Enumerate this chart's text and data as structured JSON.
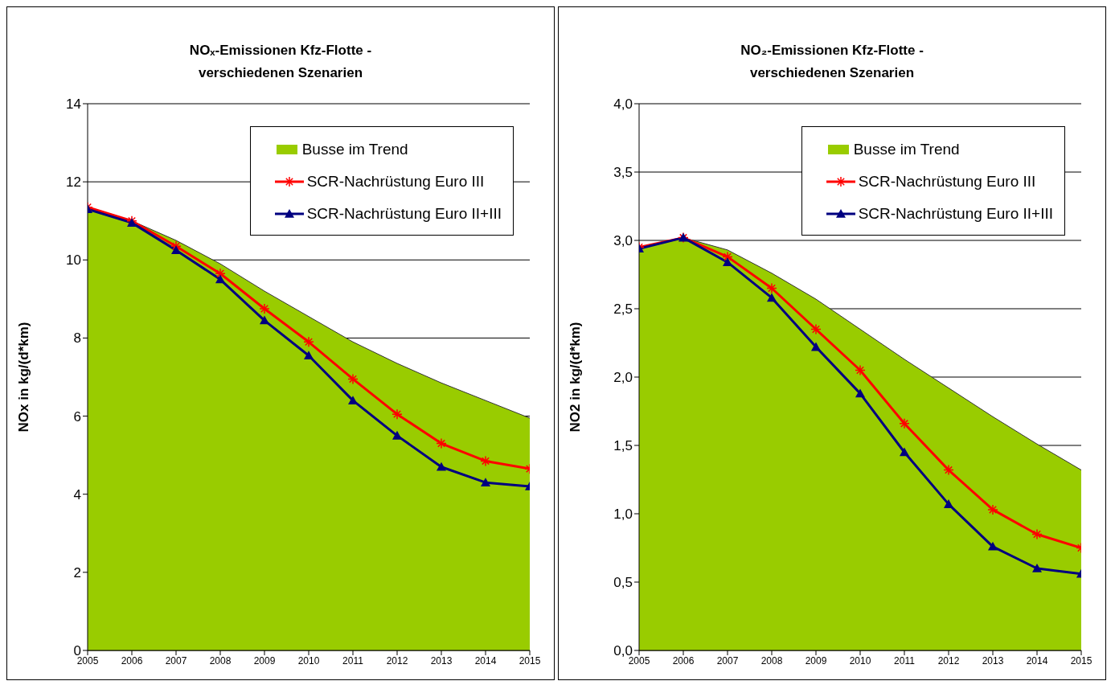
{
  "chart_data": [
    {
      "type": "line",
      "title": "NOₓ-Emissionen Kfz-Flotte -\nverschiedenen Szenarien",
      "ylabel": "NOx in kg/(d*km)",
      "categories": [
        "2005",
        "2006",
        "2007",
        "2008",
        "2009",
        "2010",
        "2011",
        "2012",
        "2013",
        "2014",
        "2015"
      ],
      "series": [
        {
          "name": "Busse im Trend",
          "type": "area",
          "color": "#99cc00",
          "values": [
            11.3,
            11.0,
            10.5,
            9.9,
            9.2,
            8.55,
            7.9,
            7.35,
            6.85,
            6.4,
            5.95
          ]
        },
        {
          "name": "SCR-Nachrüstung Euro III",
          "color": "#ff0000",
          "marker": "cross",
          "values": [
            11.35,
            11.0,
            10.35,
            9.65,
            8.75,
            7.9,
            6.95,
            6.05,
            5.3,
            4.85,
            4.65
          ]
        },
        {
          "name": "SCR-Nachrüstung Euro II+III",
          "color": "#000080",
          "marker": "triangle",
          "values": [
            11.3,
            10.95,
            10.25,
            9.5,
            8.45,
            7.55,
            6.4,
            5.5,
            4.7,
            4.3,
            4.2
          ]
        }
      ],
      "ylim": [
        0,
        14
      ],
      "yticks": [
        0,
        2,
        4,
        6,
        8,
        10,
        12,
        14
      ],
      "grid": "y",
      "legend": "top right"
    },
    {
      "type": "line",
      "title": "NO₂-Emissionen Kfz-Flotte -\nverschiedenen Szenarien",
      "ylabel": "NO2 in kg/(d*km)",
      "categories": [
        "2005",
        "2006",
        "2007",
        "2008",
        "2009",
        "2010",
        "2011",
        "2012",
        "2013",
        "2014",
        "2015"
      ],
      "series": [
        {
          "name": "Busse im Trend",
          "type": "area",
          "color": "#99cc00",
          "values": [
            2.95,
            3.02,
            2.93,
            2.76,
            2.57,
            2.35,
            2.13,
            1.92,
            1.71,
            1.51,
            1.32
          ]
        },
        {
          "name": "SCR-Nachrüstung Euro III",
          "color": "#ff0000",
          "marker": "cross",
          "values": [
            2.95,
            3.02,
            2.88,
            2.65,
            2.35,
            2.05,
            1.66,
            1.32,
            1.03,
            0.85,
            0.75
          ]
        },
        {
          "name": "SCR-Nachrüstung Euro II+III",
          "color": "#000080",
          "marker": "triangle",
          "values": [
            2.94,
            3.02,
            2.84,
            2.58,
            2.22,
            1.88,
            1.45,
            1.07,
            0.76,
            0.6,
            0.56
          ]
        }
      ],
      "ylim": [
        0,
        4
      ],
      "yticks": [
        {
          "value": 0,
          "label": "0,0"
        },
        {
          "value": 0.5,
          "label": "0,5"
        },
        {
          "value": 1,
          "label": "1,0"
        },
        {
          "value": 1.5,
          "label": "1,5"
        },
        {
          "value": 2,
          "label": "2,0"
        },
        {
          "value": 2.5,
          "label": "2,5"
        },
        {
          "value": 3,
          "label": "3,0"
        },
        {
          "value": 3.5,
          "label": "3,5"
        },
        {
          "value": 4,
          "label": "4,0"
        }
      ],
      "grid": "y",
      "legend": "top right"
    }
  ]
}
